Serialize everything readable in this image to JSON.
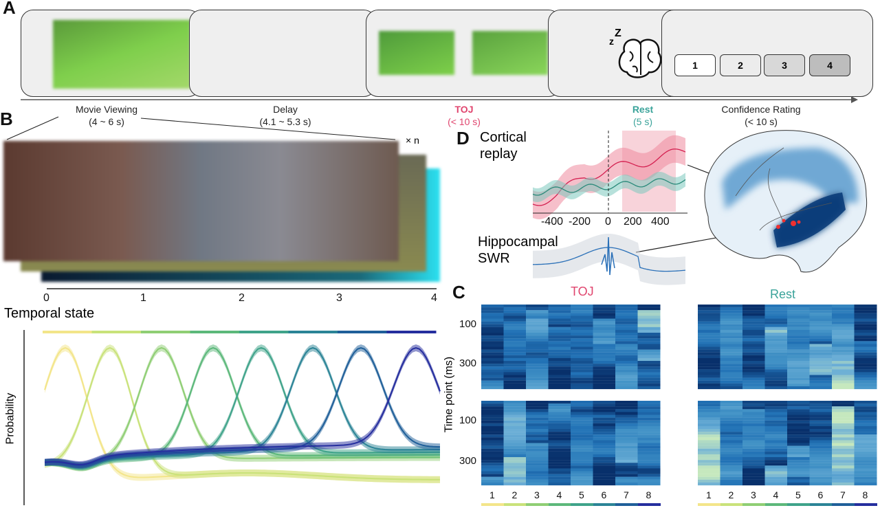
{
  "panels": {
    "a": "A",
    "b": "B",
    "c": "C",
    "d": "D"
  },
  "timeline": [
    {
      "name": "Movie Viewing",
      "duration": "(4 ~ 6 s)",
      "color": "#222222"
    },
    {
      "name": "Delay",
      "duration": "(4.1 ~ 5.3 s)",
      "color": "#222222"
    },
    {
      "name": "TOJ",
      "duration": "(< 10 s)",
      "color": "#e0456e"
    },
    {
      "name": "Rest",
      "duration": "(5 s)",
      "color": "#3aa39a"
    },
    {
      "name": "Confidence Rating",
      "duration": "(< 10 s)",
      "color": "#222222"
    }
  ],
  "rating": [
    "1",
    "2",
    "3",
    "4"
  ],
  "panel_b": {
    "repeat": "× n",
    "ticks": [
      "0",
      "1",
      "2",
      "3",
      "4"
    ],
    "xlabel": "Temporal state",
    "ylabel": "Probability"
  },
  "state_colors": [
    "#f3e58a",
    "#c9e27a",
    "#8fce74",
    "#5cb87a",
    "#3fa38a",
    "#2b8496",
    "#1f5f99",
    "#252e9e"
  ],
  "panel_c": {
    "titles": [
      "TOJ",
      "Rest"
    ],
    "ylabel": "Time point (ms)",
    "yticks": [
      "100",
      "300"
    ],
    "columns": [
      "1",
      "2",
      "3",
      "4",
      "5",
      "6",
      "7",
      "8"
    ]
  },
  "panel_d": {
    "cortical": [
      "Cortical",
      "replay"
    ],
    "hippo": [
      "Hippocampal",
      "SWR"
    ],
    "xticks": [
      "-400",
      "-200",
      "0",
      "200",
      "400"
    ]
  }
}
